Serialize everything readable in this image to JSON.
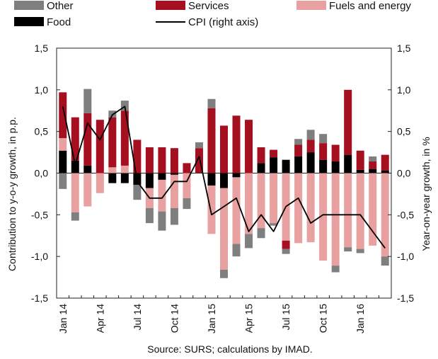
{
  "chart_data": {
    "type": "bar",
    "stacked": true,
    "source": "Source: SURS; calculations by IMAD.",
    "ylabel_left": "Contribution to y-o-y growth, in p.p.",
    "ylabel_right": "Year-on-year growth, in %",
    "ylim_left": [
      -1.5,
      1.5
    ],
    "ylim_right": [
      -1.5,
      1.5
    ],
    "yticks": [
      "1,5",
      "1,0",
      "0,5",
      "0,0",
      "-0,5",
      "-1,0",
      "-1,5"
    ],
    "ytick_values": [
      1.5,
      1.0,
      0.5,
      0.0,
      -0.5,
      -1.0,
      -1.5
    ],
    "xtick_labels": [
      {
        "index": 0,
        "label": "Jan 14"
      },
      {
        "index": 3,
        "label": "Apr 14"
      },
      {
        "index": 6,
        "label": "Jul 14"
      },
      {
        "index": 9,
        "label": "Oct 14"
      },
      {
        "index": 12,
        "label": "Jan 15"
      },
      {
        "index": 15,
        "label": "Apr 15"
      },
      {
        "index": 18,
        "label": "Jul 15"
      },
      {
        "index": 21,
        "label": "Oct 15"
      },
      {
        "index": 24,
        "label": "Jan 16"
      }
    ],
    "legend": [
      {
        "name": "Other",
        "color": "#7f7f7f",
        "kind": "bar"
      },
      {
        "name": "Services",
        "color": "#a50f1f",
        "kind": "bar"
      },
      {
        "name": "Fuels and energy",
        "color": "#e8a0a0",
        "kind": "bar"
      },
      {
        "name": "Food",
        "color": "#000000",
        "kind": "bar"
      },
      {
        "name": "CPI (right axis)",
        "color": "#000000",
        "kind": "line"
      }
    ],
    "series": [
      {
        "name": "Food",
        "color": "#000000",
        "values": [
          0.27,
          0.15,
          0.09,
          0,
          -0.12,
          -0.12,
          -0.14,
          -0.18,
          -0.08,
          -0.02,
          0,
          0,
          -0.15,
          -0.18,
          -0.05,
          0,
          0.12,
          0.19,
          0.16,
          0.2,
          0.25,
          0.16,
          0.14,
          0.22,
          0.04,
          0.05,
          0.03
        ]
      },
      {
        "name": "Fuels and energy",
        "color": "#e8a0a0",
        "values": [
          0.15,
          -0.47,
          -0.4,
          -0.24,
          0.07,
          0.09,
          0,
          -0.24,
          -0.38,
          -0.4,
          -0.3,
          0,
          -0.58,
          -0.98,
          -0.8,
          -0.73,
          -0.66,
          -0.6,
          -0.81,
          -0.84,
          -0.83,
          -1.05,
          -1.11,
          -0.89,
          -0.91,
          -0.87,
          -1.0
        ]
      },
      {
        "name": "Services",
        "color": "#a50f1f",
        "values": [
          0.55,
          0.52,
          0.63,
          0.64,
          0.6,
          0.66,
          0.4,
          0.31,
          0.31,
          0.3,
          0.12,
          0.3,
          0.78,
          0.57,
          0.69,
          0.64,
          0.19,
          0.09,
          -0.1,
          0.14,
          0.15,
          0.2,
          0.2,
          0.78,
          0.23,
          0.09,
          0.19
        ]
      },
      {
        "name": "Other",
        "color": "#7f7f7f",
        "values": [
          -0.19,
          -0.1,
          0.29,
          0,
          0.08,
          0.12,
          -0.18,
          -0.18,
          -0.23,
          -0.2,
          -0.13,
          0.07,
          0.11,
          -0.1,
          -0.15,
          -0.17,
          -0.12,
          -0.03,
          -0.06,
          0.07,
          0.12,
          0.11,
          -0.08,
          -0.05,
          -0.05,
          0.06,
          -0.11
        ]
      }
    ],
    "line": {
      "name": "CPI (right axis)",
      "axis": "right",
      "values": [
        0.8,
        0.1,
        0.6,
        0.4,
        0.7,
        0.8,
        -0.1,
        -0.3,
        -0.3,
        -0.1,
        -0.1,
        0.2,
        -0.5,
        -0.4,
        -0.3,
        -0.7,
        -0.5,
        -0.7,
        -0.4,
        -0.3,
        -0.6,
        -0.5,
        -0.5,
        -0.5,
        -0.5,
        -0.7,
        -0.9
      ]
    }
  }
}
